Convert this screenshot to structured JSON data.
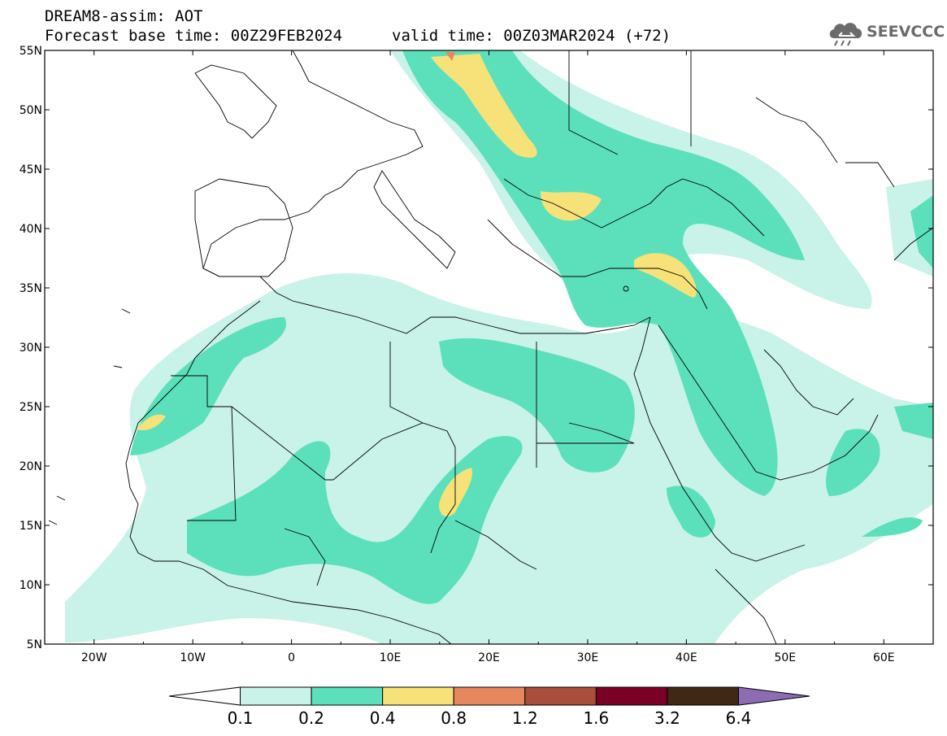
{
  "header": {
    "line1": "DREAM8-assim: AOT",
    "line2": "Forecast base time: 00Z29FEB2024",
    "valid": "valid time: 00Z03MAR2024 (+72)",
    "logo_text": "SEEVCCC"
  },
  "map": {
    "lat_labels": [
      "55N",
      "50N",
      "45N",
      "40N",
      "35N",
      "30N",
      "25N",
      "20N",
      "15N",
      "10N",
      "5N"
    ],
    "lon_labels": [
      "20W",
      "10W",
      "0",
      "10E",
      "20E",
      "30E",
      "40E",
      "50E",
      "60E"
    ],
    "extent": {
      "lon_min": -25,
      "lon_max": 65,
      "lat_min": 5,
      "lat_max": 55
    }
  },
  "colorbar": {
    "colors": [
      "#ffffff",
      "#c9f2e8",
      "#5ce0bb",
      "#f7e27a",
      "#e6875e",
      "#a84e3a",
      "#7a0025",
      "#402816",
      "#8e6cb3"
    ],
    "labels": [
      "0.1",
      "0.2",
      "0.4",
      "0.8",
      "1.2",
      "1.6",
      "3.2",
      "6.4"
    ]
  },
  "colors": {
    "frame": "#000000",
    "border": "#000000"
  }
}
